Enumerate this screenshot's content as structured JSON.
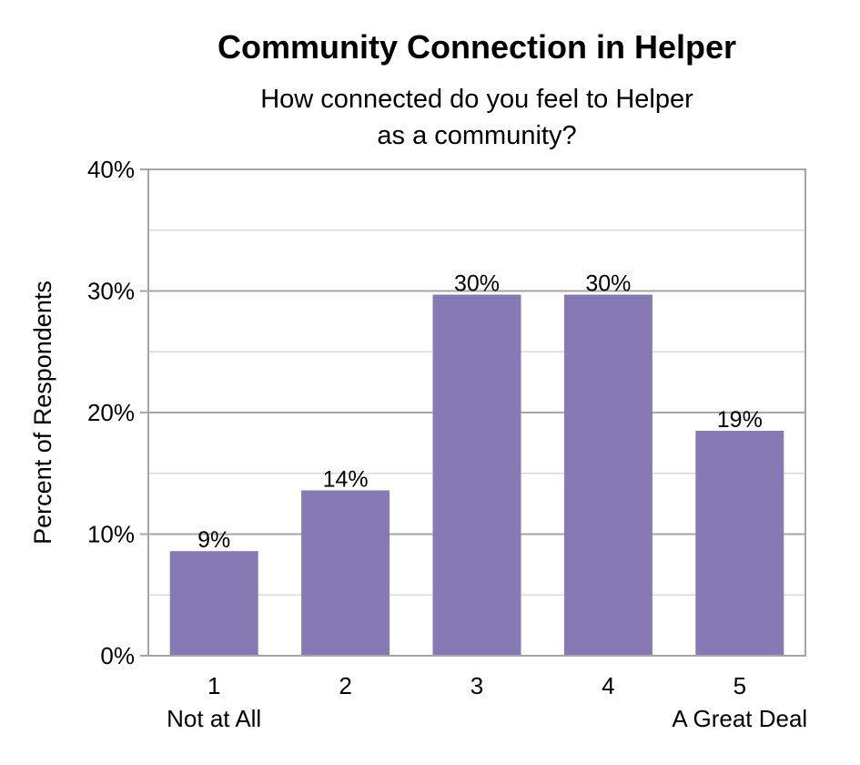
{
  "chart_data": {
    "type": "bar",
    "title": "Community Connection in Helper",
    "subtitle_lines": [
      "How connected do you feel to Helper",
      "as a community?"
    ],
    "ylabel": "Percent of Respondents",
    "xlabel": "",
    "categories": [
      "1",
      "2",
      "3",
      "4",
      "5"
    ],
    "category_sublabels": [
      "Not at All",
      "",
      "",
      "",
      "A Great Deal"
    ],
    "values": [
      8.6,
      13.6,
      29.7,
      29.7,
      18.5
    ],
    "data_labels": [
      "9%",
      "14%",
      "30%",
      "30%",
      "19%"
    ],
    "ylim": [
      0,
      40
    ],
    "yticks": [
      0,
      10,
      20,
      30,
      40
    ],
    "ytick_labels": [
      "0%",
      "10%",
      "20%",
      "30%",
      "40%"
    ],
    "minor_gridlines": [
      5,
      15,
      25,
      35
    ],
    "grid": true,
    "legend": "none",
    "colors": {
      "bar": "#8779b4",
      "major_grid": "#a6a6a6",
      "minor_grid": "#d9d9d9",
      "axis": "#a6a6a6"
    }
  }
}
